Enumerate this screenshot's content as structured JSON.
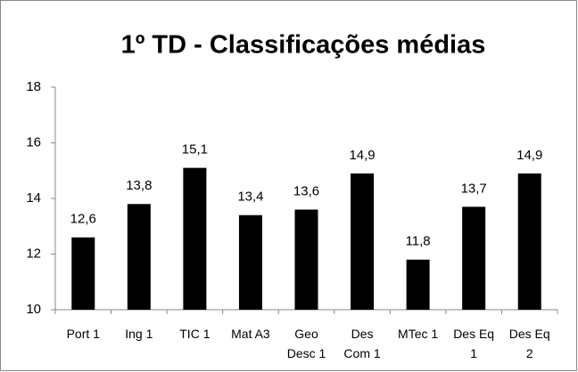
{
  "chart_data": {
    "type": "bar",
    "title": "1º TD - Classificações médias",
    "categories": [
      "Port 1",
      "Ing 1",
      "TIC 1",
      "Mat A3",
      "Geo Desc 1",
      "Des Com 1",
      "MTec 1",
      "Des Eq 1",
      "Des Eq 2"
    ],
    "values": [
      12.6,
      13.8,
      15.1,
      13.4,
      13.6,
      14.9,
      11.8,
      13.7,
      14.9
    ],
    "value_labels": [
      "12,6",
      "13,8",
      "15,1",
      "13,4",
      "13,6",
      "14,9",
      "11,8",
      "13,7",
      "14,9"
    ],
    "color": "#000000",
    "ylim": [
      10,
      18
    ],
    "yticks": [
      10,
      12,
      14,
      16,
      18
    ],
    "grid": false
  }
}
